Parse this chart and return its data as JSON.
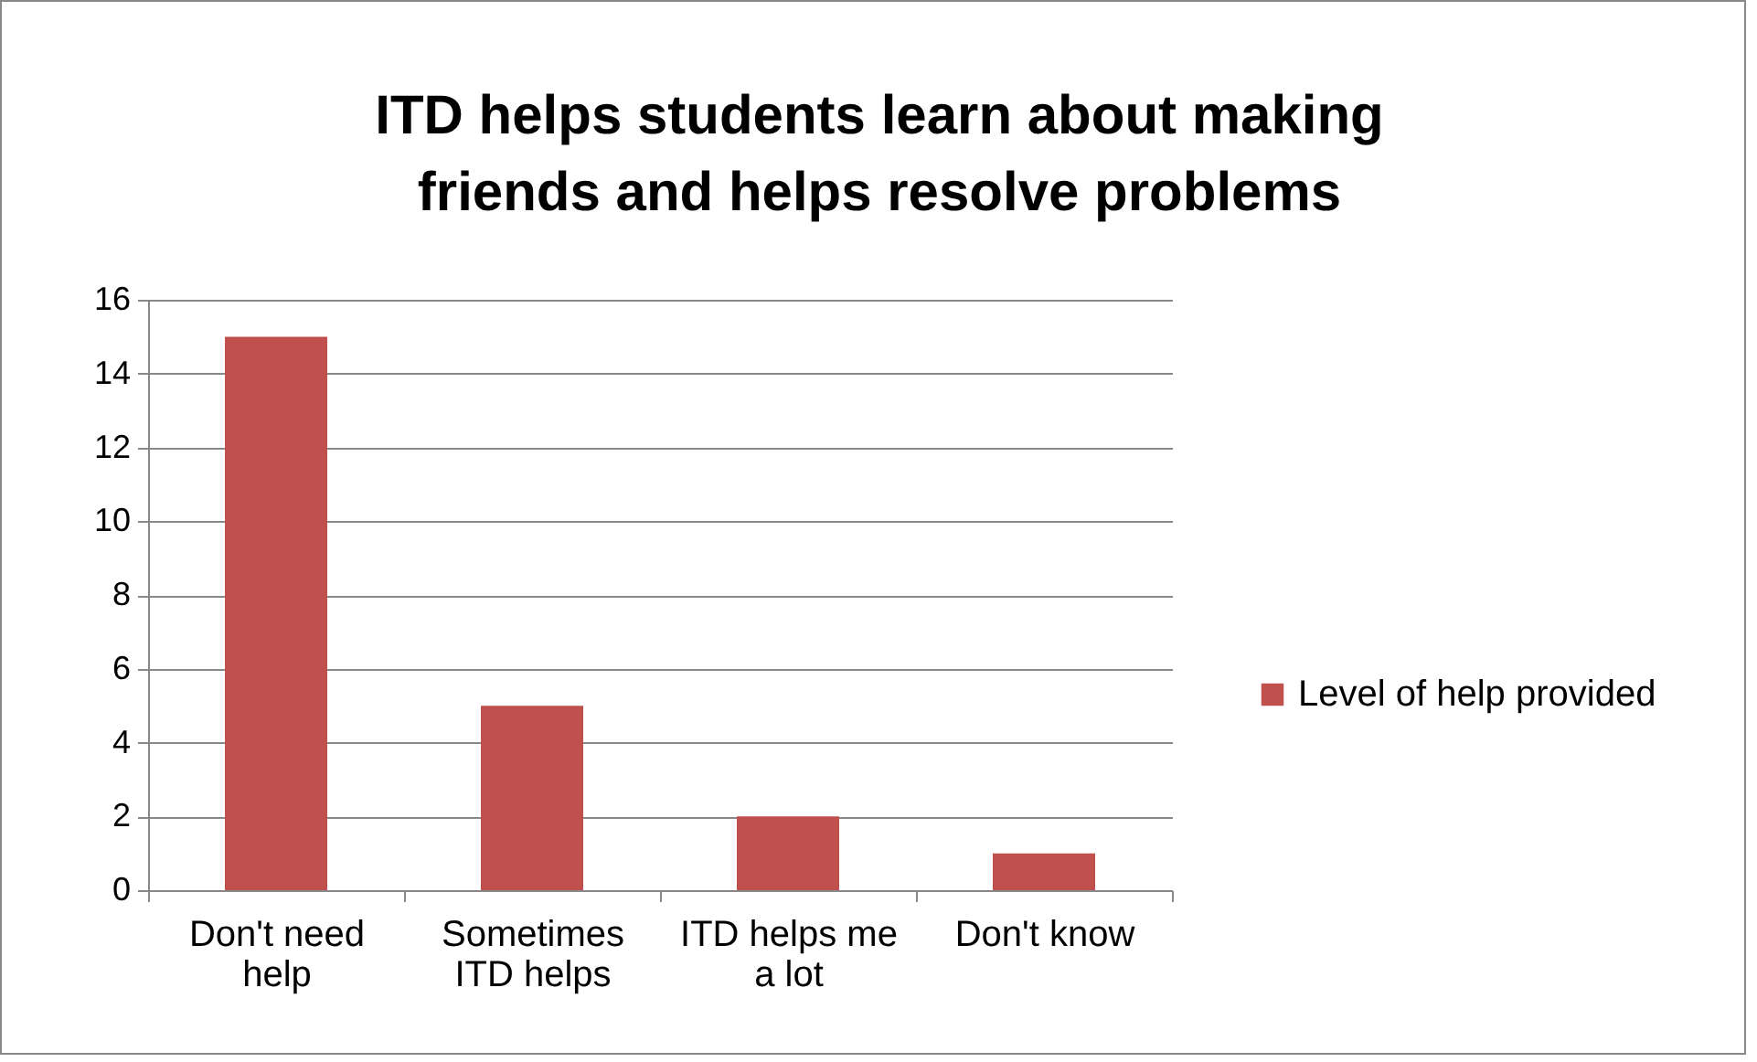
{
  "chart_data": {
    "type": "bar",
    "title": "ITD helps students learn about making friends and helps resolve problems",
    "categories": [
      "Don't need help",
      "Sometimes ITD helps",
      "ITD helps me a lot",
      "Don't know"
    ],
    "series": [
      {
        "name": "Level of help provided",
        "color": "#c0504d",
        "values": [
          15,
          5,
          2,
          1
        ]
      }
    ],
    "ylim": [
      0,
      16
    ],
    "yticks": [
      0,
      2,
      4,
      6,
      8,
      10,
      12,
      14,
      16
    ],
    "grid": "y",
    "legend": "right"
  }
}
